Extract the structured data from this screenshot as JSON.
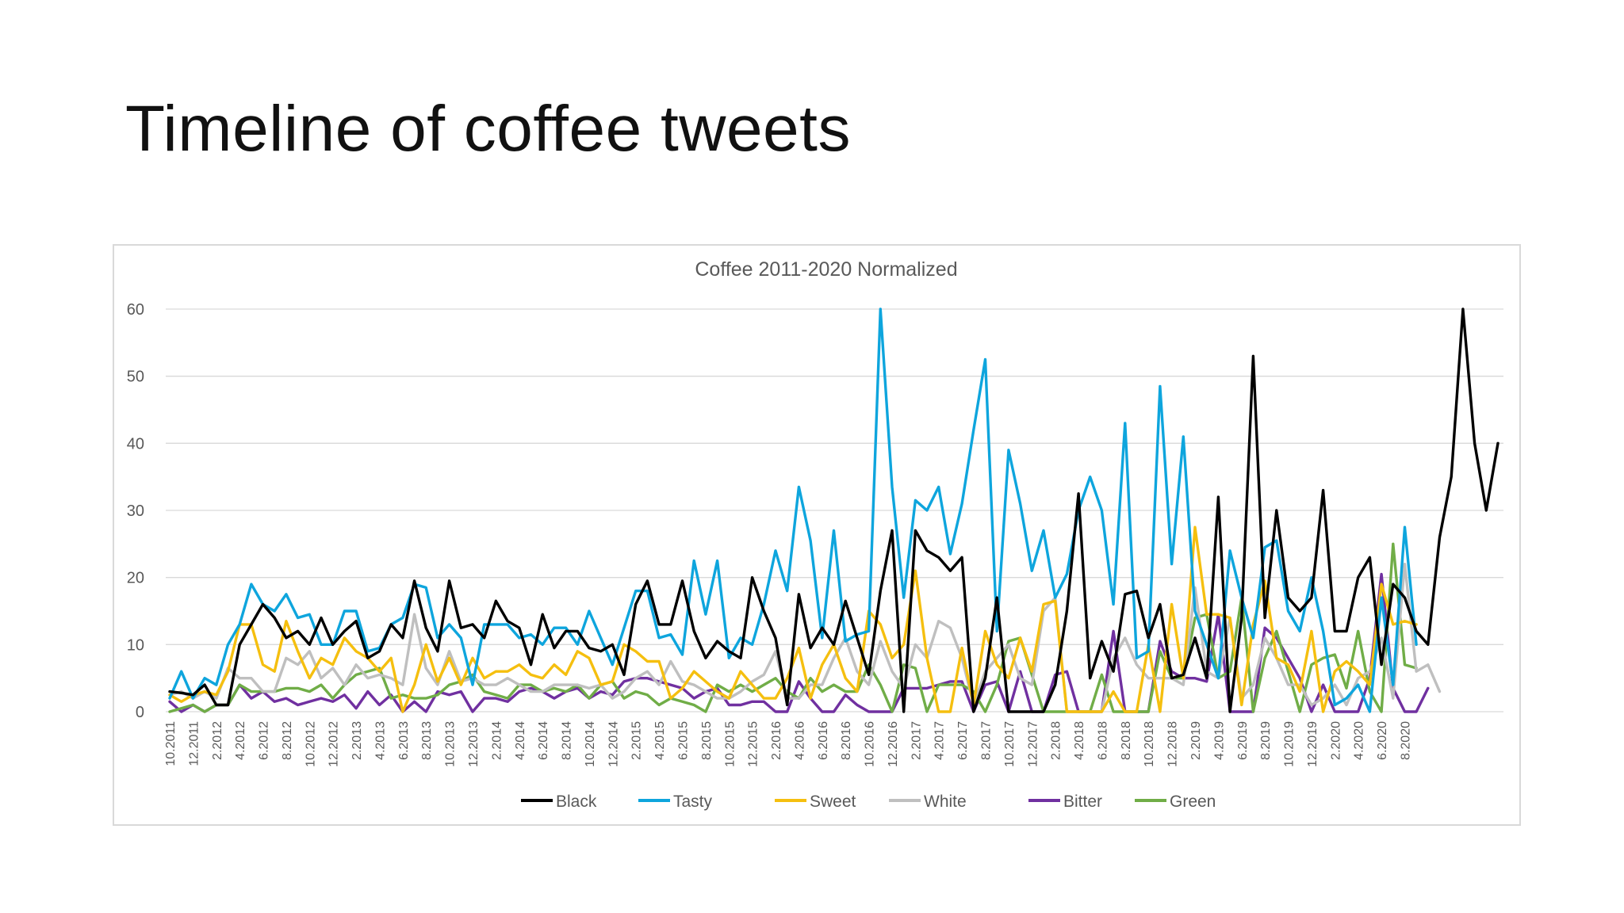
{
  "slide": {
    "title": "Timeline of coffee tweets"
  },
  "chart_data": {
    "type": "line",
    "title": "Coffee 2011-2020 Normalized",
    "xlabel": "",
    "ylabel": "",
    "ylim": [
      0,
      60
    ],
    "yticks": [
      0,
      10,
      20,
      30,
      40,
      50,
      60
    ],
    "grid": true,
    "legend_position": "bottom",
    "x_labels": [
      "10.2011",
      "12.2011",
      "2.2012",
      "4.2012",
      "6.2012",
      "8.2012",
      "10.2012",
      "12.2012",
      "2.2013",
      "4.2013",
      "6.2013",
      "8.2013",
      "10.2013",
      "12.2013",
      "2.2014",
      "4.2014",
      "6.2014",
      "8.2014",
      "10.2014",
      "12.2014",
      "2.2015",
      "4.2015",
      "6.2015",
      "8.2015",
      "10.2015",
      "12.2015",
      "2.2016",
      "4.2016",
      "6.2016",
      "8.2016",
      "10.2016",
      "12.2016",
      "2.2017",
      "4.2017",
      "6.2017",
      "8.2017",
      "10.2017",
      "12.2017",
      "2.2018",
      "4.2018",
      "6.2018",
      "8.2018",
      "10.2018",
      "12.2018",
      "2.2019",
      "4.2019",
      "6.2019",
      "8.2019",
      "10.2019",
      "12.2019",
      "2.2020",
      "4.2020",
      "6.2020",
      "8.2020"
    ],
    "series": [
      {
        "name": "Black",
        "color": "#000000",
        "values": [
          3,
          2.8,
          2.5,
          4,
          1,
          1,
          10,
          13,
          16,
          14,
          11,
          12,
          10,
          14,
          10,
          12,
          13.5,
          8,
          9,
          13,
          11,
          19.5,
          12.5,
          9,
          19.5,
          12.5,
          13,
          11,
          16.5,
          13.5,
          12.5,
          7,
          14.5,
          9.5,
          12,
          12,
          9.5,
          9,
          10,
          5.5,
          16,
          19.5,
          13,
          13,
          19.5,
          12,
          8,
          10.5,
          9,
          8,
          20,
          15,
          11,
          1,
          17.5,
          9.5,
          12.5,
          10,
          16.5,
          11,
          5.5,
          18,
          27,
          0,
          27,
          24,
          23,
          21,
          23,
          0,
          5,
          17,
          0,
          0,
          0,
          0,
          4,
          15,
          32.5,
          5,
          10.5,
          6,
          17.5,
          18,
          11,
          16,
          5,
          5.5,
          11,
          5,
          32,
          0,
          14,
          53,
          14,
          30,
          17,
          15,
          17,
          33,
          12,
          12,
          20,
          23,
          7,
          19,
          17,
          12,
          10,
          26,
          35,
          60,
          40,
          30,
          40
        ]
      },
      {
        "name": "Tasty",
        "color": "#0ea5dd",
        "values": [
          2,
          6,
          2,
          5,
          4,
          10,
          13,
          19,
          16,
          15,
          17.5,
          14,
          14.5,
          10,
          10,
          15,
          15,
          9,
          9.5,
          13,
          14,
          19,
          18.5,
          11,
          13,
          11,
          4,
          13,
          13,
          13,
          11,
          11.5,
          10,
          12.5,
          12.5,
          10,
          15,
          11,
          7,
          12.5,
          18,
          18,
          11,
          11.5,
          8.5,
          22.5,
          14.5,
          22.5,
          8,
          11,
          10,
          16,
          24,
          18,
          33.5,
          25.5,
          11,
          27,
          10.5,
          11.5,
          12,
          60,
          33.5,
          17,
          31.5,
          30,
          33.5,
          23.5,
          31,
          42,
          52.5,
          12,
          39,
          31,
          21,
          27,
          17,
          20.5,
          30,
          35,
          30,
          16,
          43,
          8,
          9,
          48.5,
          22,
          41,
          15,
          10,
          5,
          24,
          17,
          11,
          24.5,
          25.5,
          15,
          12,
          20,
          12,
          1,
          2,
          4,
          0,
          17,
          4,
          27.5,
          10
        ]
      },
      {
        "name": "Sweet",
        "color": "#f5bf0f",
        "values": [
          2.5,
          1.5,
          2.5,
          3,
          2.5,
          6,
          13,
          13,
          7,
          6,
          13.5,
          9,
          5,
          8,
          7,
          11,
          9,
          8,
          6,
          8,
          0,
          4,
          10,
          4.5,
          8,
          4,
          8,
          5,
          6,
          6,
          7,
          5.5,
          5,
          7,
          5.5,
          9,
          8,
          4,
          4.5,
          10,
          9,
          7.5,
          7.5,
          2,
          3.5,
          6,
          4.5,
          3,
          2,
          6,
          4,
          2,
          2,
          5,
          9.5,
          2,
          7,
          10,
          5,
          3,
          15,
          13,
          8,
          10,
          21,
          8,
          0,
          0,
          9.5,
          1,
          12,
          7,
          5,
          11,
          6,
          16,
          16.5,
          0,
          0,
          0,
          0,
          3,
          0,
          0,
          10,
          0,
          16,
          5,
          27.5,
          14.5,
          14.5,
          14,
          1,
          13,
          19.5,
          8,
          7,
          3,
          12,
          0,
          6,
          7.5,
          6,
          4,
          19,
          13,
          13.5,
          13
        ]
      },
      {
        "name": "White",
        "color": "#bfbfbf",
        "values": [
          2.5,
          3,
          2,
          3,
          2,
          6.5,
          5,
          5,
          3,
          3,
          8,
          7,
          9,
          5,
          6.5,
          4,
          7,
          5,
          5.5,
          5,
          4,
          14.5,
          6.5,
          4,
          9,
          4.5,
          5,
          4,
          4,
          5,
          4,
          3,
          3,
          4,
          4,
          4,
          3.5,
          4,
          2,
          3,
          5,
          6,
          4,
          7.5,
          4.5,
          4,
          3,
          2,
          2,
          3,
          4.5,
          5.5,
          9,
          2,
          2,
          4,
          4,
          8,
          11,
          6,
          4,
          10.5,
          6,
          3.5,
          10,
          8,
          13.5,
          12.5,
          8,
          1,
          6,
          8,
          10,
          5,
          4,
          15,
          17,
          0,
          0,
          0,
          0,
          8,
          11,
          7,
          5,
          5,
          5,
          4,
          18.5,
          6,
          5,
          14,
          2,
          4,
          11,
          8,
          4,
          4,
          1,
          2,
          4,
          1,
          5,
          6,
          11,
          2,
          22,
          6,
          7,
          3
        ]
      },
      {
        "name": "Bitter",
        "color": "#7030a0",
        "values": [
          1.5,
          0,
          1,
          0,
          1,
          1,
          4,
          2,
          3,
          1.5,
          2,
          1,
          1.5,
          2,
          1.5,
          2.5,
          0.5,
          3,
          1,
          2.5,
          0,
          1.5,
          0,
          3,
          2.5,
          3,
          0,
          2,
          2,
          1.5,
          3,
          3.5,
          3,
          2,
          3,
          3.5,
          2,
          3,
          2.5,
          4.5,
          5,
          5,
          4.5,
          4,
          3.5,
          2,
          3,
          3.5,
          1,
          1,
          1.5,
          1.5,
          0,
          0,
          4.5,
          2,
          0,
          0,
          2.5,
          1,
          0,
          0,
          0,
          3.5,
          3.5,
          3.5,
          4,
          4.5,
          4.5,
          0,
          4,
          4.5,
          0,
          6,
          0,
          0,
          5.5,
          6,
          0,
          0,
          0,
          12,
          0,
          0,
          0,
          10.5,
          6,
          5,
          5,
          4.5,
          14.5,
          0,
          0,
          0,
          12.5,
          11,
          8,
          5,
          0,
          4,
          0,
          0,
          0,
          5,
          20.5,
          3.5,
          0,
          0,
          3.5
        ]
      },
      {
        "name": "Green",
        "color": "#70ad47",
        "values": [
          0,
          0.5,
          1,
          0,
          1,
          1,
          4,
          3,
          3,
          3,
          3.5,
          3.5,
          3,
          4,
          2,
          4,
          5.5,
          6,
          6.5,
          2,
          2.5,
          2,
          2,
          2.5,
          4,
          4.5,
          5.5,
          3,
          2.5,
          2,
          4,
          4,
          3,
          3.5,
          3,
          4,
          2,
          4,
          4.5,
          2,
          3,
          2.5,
          1,
          2,
          1.5,
          1,
          0,
          4,
          3,
          4,
          3,
          4,
          5,
          3,
          2,
          5,
          3,
          4,
          3,
          3,
          7,
          4,
          0,
          7,
          6.5,
          0,
          4,
          4,
          4,
          3,
          0,
          4,
          10.5,
          11,
          5.5,
          0,
          0,
          0,
          0,
          0,
          5.5,
          0,
          0,
          0,
          0,
          9,
          5,
          5,
          14,
          14.5,
          5,
          6,
          17,
          0,
          8,
          12,
          6,
          0,
          7,
          8,
          8.5,
          3.5,
          12,
          3,
          0,
          25,
          7,
          6.5
        ]
      }
    ]
  }
}
